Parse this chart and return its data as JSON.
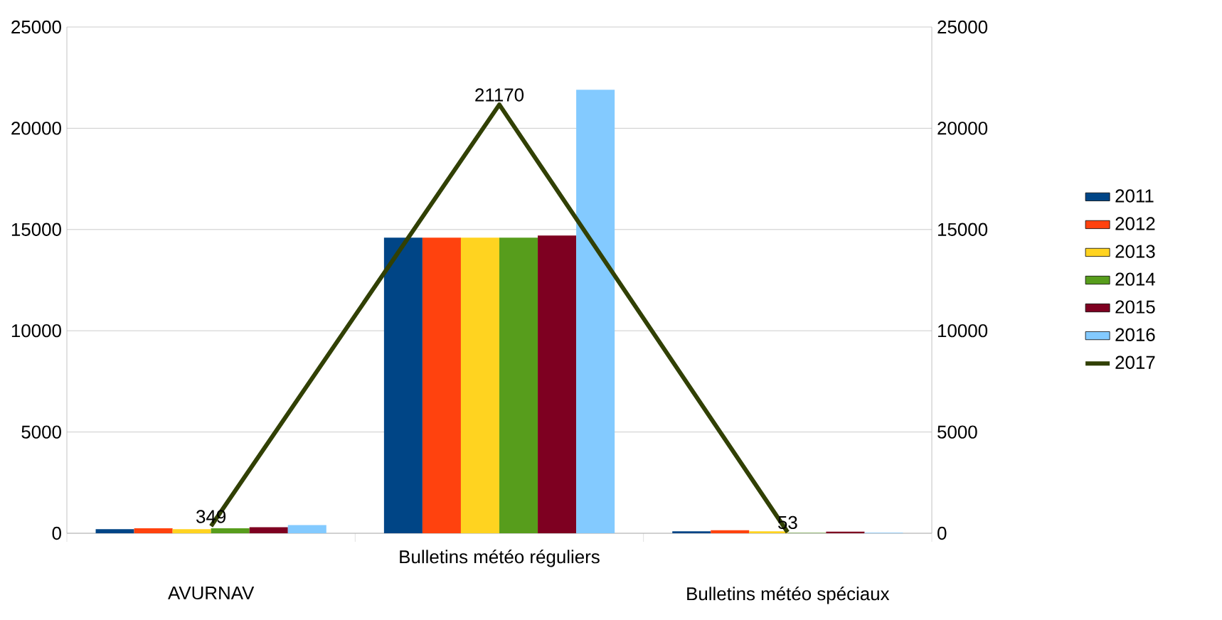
{
  "chart_data": {
    "type": "bar",
    "categories": [
      "AVURNAV",
      "Bulletins météo réguliers",
      "Bulletins météo spéciaux"
    ],
    "series": [
      {
        "name": "2011",
        "color": "#004586",
        "values": [
          200,
          14600,
          100
        ]
      },
      {
        "name": "2012",
        "color": "#ff420e",
        "values": [
          250,
          14600,
          150
        ]
      },
      {
        "name": "2013",
        "color": "#ffd320",
        "values": [
          200,
          14600,
          100
        ]
      },
      {
        "name": "2014",
        "color": "#579d1c",
        "values": [
          250,
          14600,
          20
        ]
      },
      {
        "name": "2015",
        "color": "#7e0021",
        "values": [
          300,
          14700,
          80
        ]
      },
      {
        "name": "2016",
        "color": "#83caff",
        "values": [
          400,
          21900,
          30
        ]
      },
      {
        "name": "2017",
        "color": "#314004",
        "type": "line",
        "values": [
          349,
          21170,
          53
        ],
        "value_labels": [
          "349",
          "21170",
          "53"
        ]
      }
    ],
    "ylim": [
      0,
      25000
    ],
    "yticks": [
      0,
      5000,
      10000,
      15000,
      20000,
      25000
    ],
    "y2lim": [
      0,
      25000
    ],
    "y2ticks": [
      0,
      5000,
      10000,
      15000,
      20000,
      25000
    ],
    "grid": "y",
    "legend": "right"
  }
}
